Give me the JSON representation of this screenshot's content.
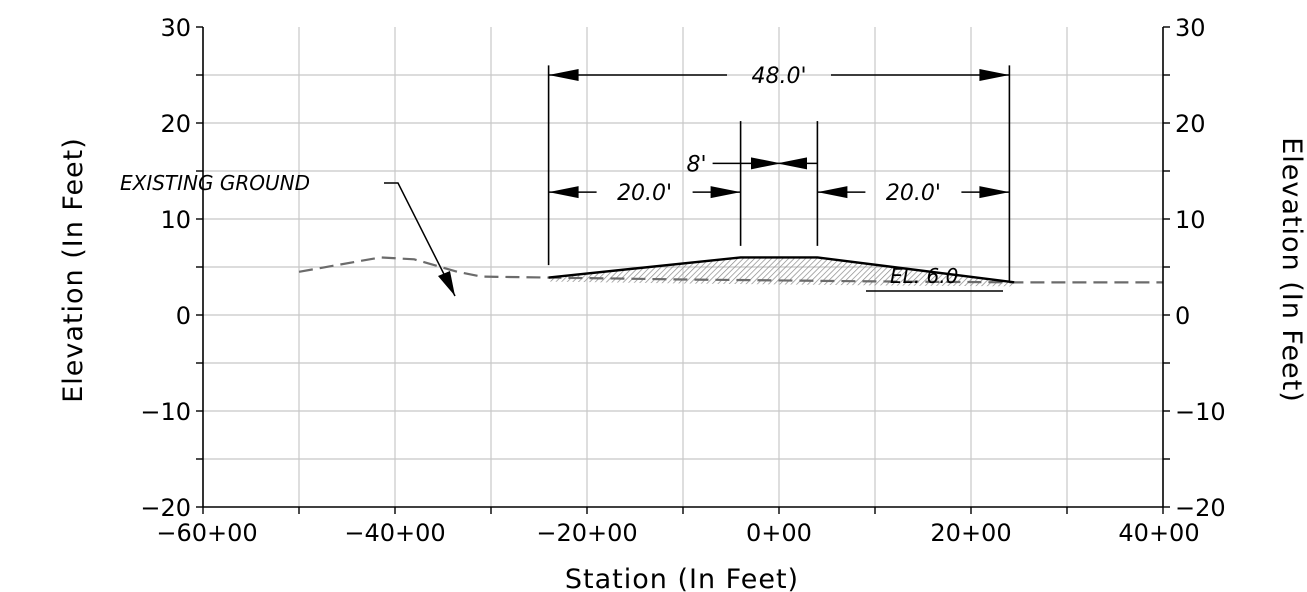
{
  "chart_data": {
    "type": "line",
    "xlabel": "Station (In Feet)",
    "ylabel": "Elevation (In Feet)",
    "ylabel_right": "Elevation (In Feet)",
    "xlim": [
      -60,
      40
    ],
    "ylim": [
      -20,
      30
    ],
    "x_tick_values": [
      -60,
      -40,
      -20,
      0,
      20,
      40
    ],
    "x_tick_labels": [
      "−60+00",
      "−40+00",
      "−20+00",
      "0+00",
      "20+00",
      "40+00"
    ],
    "y_tick_values": [
      -20,
      -10,
      0,
      10,
      20,
      30
    ],
    "y_tick_labels": [
      "−20",
      "−10",
      "0",
      "10",
      "20",
      "30"
    ],
    "grid": true,
    "grid_x_step": 10,
    "grid_y_step": 5,
    "series": [
      {
        "style": "dashed",
        "color": "#6b6b6b",
        "x": [
          -50,
          -41.5,
          -38,
          -33.5,
          -31,
          -24,
          -10,
          0,
          10,
          24.5,
          40
        ],
        "y": [
          4.5,
          6.0,
          5.8,
          4.5,
          4.0,
          3.9,
          3.7,
          3.6,
          3.5,
          3.4,
          3.4
        ]
      },
      {
        "style": "solid",
        "color": "#000000",
        "x": [
          -24,
          -4,
          4,
          24.5
        ],
        "y": [
          3.9,
          6.0,
          6.0,
          3.4
        ]
      }
    ],
    "fill_color": "#9a9a9a",
    "dimensions": [
      {
        "label": "48.0'",
        "x1": -24,
        "x2": 24,
        "y": 25
      },
      {
        "label": "8'",
        "x1": -4,
        "x2": 4,
        "y": 15.8
      },
      {
        "label": "20.0'",
        "x1": -24,
        "x2": -4,
        "y": 12.8
      },
      {
        "label": "20.0'",
        "x1": 4,
        "x2": 24,
        "y": 12.8
      }
    ],
    "annotations": [
      {
        "text": "EXISTING GROUND"
      },
      {
        "text": "EL. 6.0"
      }
    ]
  }
}
